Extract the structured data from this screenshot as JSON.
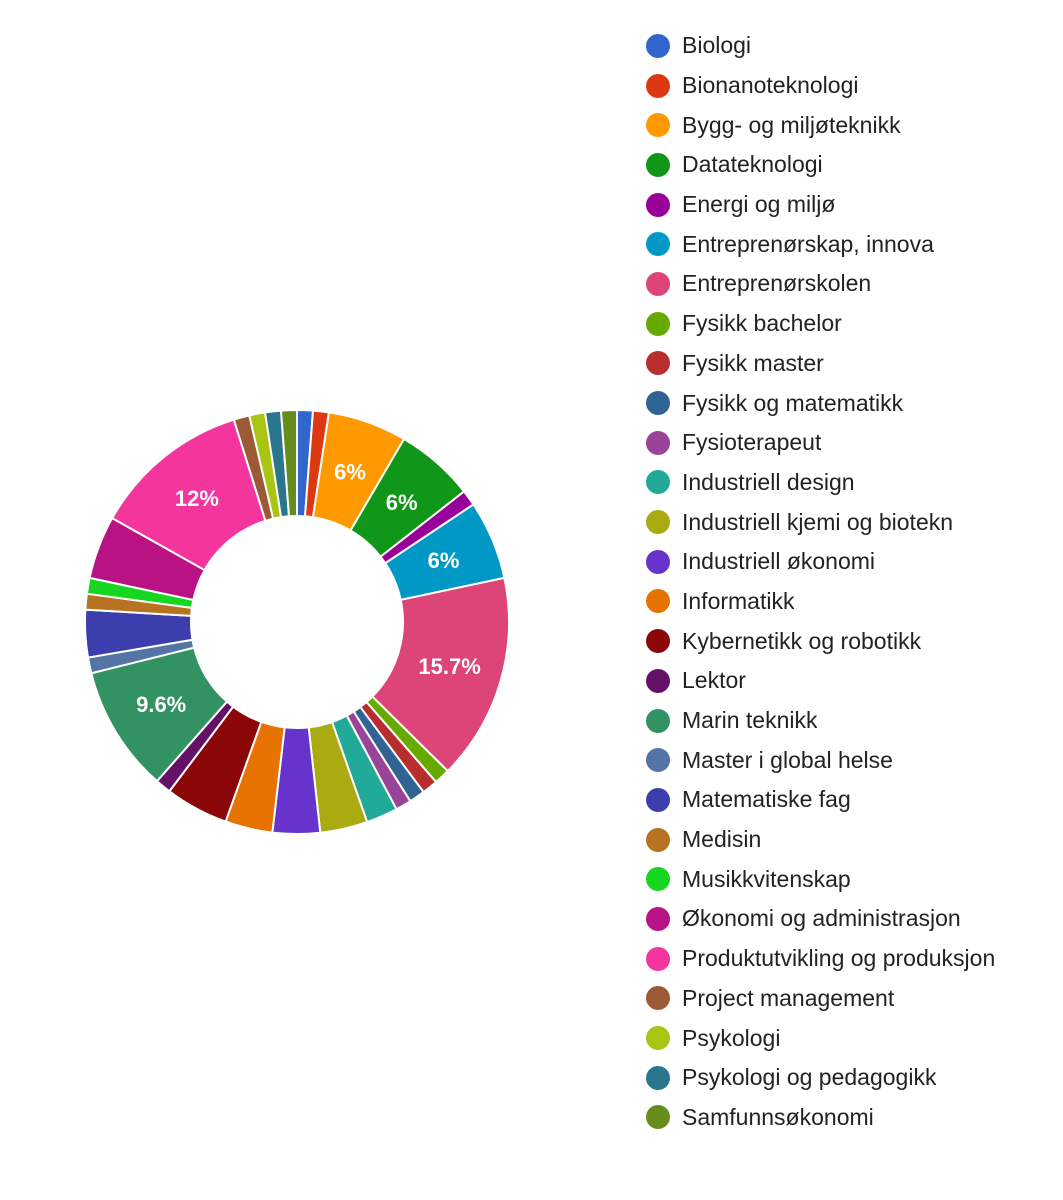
{
  "chart_data": {
    "type": "pie",
    "donut": true,
    "legend_position": "right",
    "categories": [
      "Biologi",
      "Bionanoteknologi",
      "Bygg- og miljøteknikk",
      "Datateknologi",
      "Energi og miljø",
      "Entreprenørskap, innovasjon og samfunn",
      "Entreprenørskolen",
      "Fysikk bachelor",
      "Fysikk master",
      "Fysikk og matematikk",
      "Fysioterapeut",
      "Industriell design",
      "Industriell kjemi og bioteknologi",
      "Industriell økonomi",
      "Informatikk",
      "Kybernetikk og robotikk",
      "Lektor",
      "Marin teknikk",
      "Master i global helse",
      "Matematiske fag",
      "Medisin",
      "Musikkvitenskap",
      "Økonomi og administrasjon",
      "Produktutvikling og produksjon",
      "Project management",
      "Psykologi",
      "Psykologi og pedagogikk",
      "Samfunnsøkonomi"
    ],
    "legend_labels": [
      "Biologi",
      "Bionanoteknologi",
      "Bygg- og miljøteknikk",
      "Datateknologi",
      "Energi og miljø",
      "Entreprenørskap, innova",
      "Entreprenørskolen",
      "Fysikk bachelor",
      "Fysikk master",
      "Fysikk og matematikk",
      "Fysioterapeut",
      "Industriell design",
      "Industriell kjemi og biotekn",
      "Industriell økonomi",
      "Informatikk",
      "Kybernetikk og robotikk",
      "Lektor",
      "Marin teknikk",
      "Master i global helse",
      "Matematiske fag",
      "Medisin",
      "Musikkvitenskap",
      "Økonomi og administrasjon",
      "Produktutvikling og produksjon",
      "Project management",
      "Psykologi",
      "Psykologi og pedagogikk",
      "Samfunnsøkonomi"
    ],
    "values": [
      1.2,
      1.2,
      6.0,
      6.0,
      1.2,
      6.0,
      15.7,
      1.2,
      1.2,
      1.2,
      1.2,
      2.4,
      3.6,
      3.6,
      3.6,
      4.8,
      1.2,
      9.6,
      1.2,
      3.6,
      1.2,
      1.2,
      4.8,
      12.0,
      1.2,
      1.2,
      1.2,
      1.2
    ],
    "data_labels": [
      "",
      "",
      "6%",
      "6%",
      "",
      "6%",
      "15.7%",
      "",
      "",
      "",
      "",
      "",
      "",
      "",
      "",
      "",
      "",
      "9.6%",
      "",
      "",
      "",
      "",
      "",
      "12%",
      "",
      "",
      "",
      ""
    ],
    "colors": [
      "#3366cc",
      "#dc3912",
      "#ff9900",
      "#109618",
      "#990099",
      "#0099c6",
      "#dd4477",
      "#66aa00",
      "#b82e2e",
      "#316395",
      "#994499",
      "#22aa99",
      "#aaaa11",
      "#6633cc",
      "#e67300",
      "#8b0707",
      "#651067",
      "#329262",
      "#5574a6",
      "#3b3eac",
      "#b77322",
      "#16d620",
      "#b91383",
      "#f4359e",
      "#9c5935",
      "#a9c413",
      "#2a778d",
      "#668d1c"
    ]
  }
}
